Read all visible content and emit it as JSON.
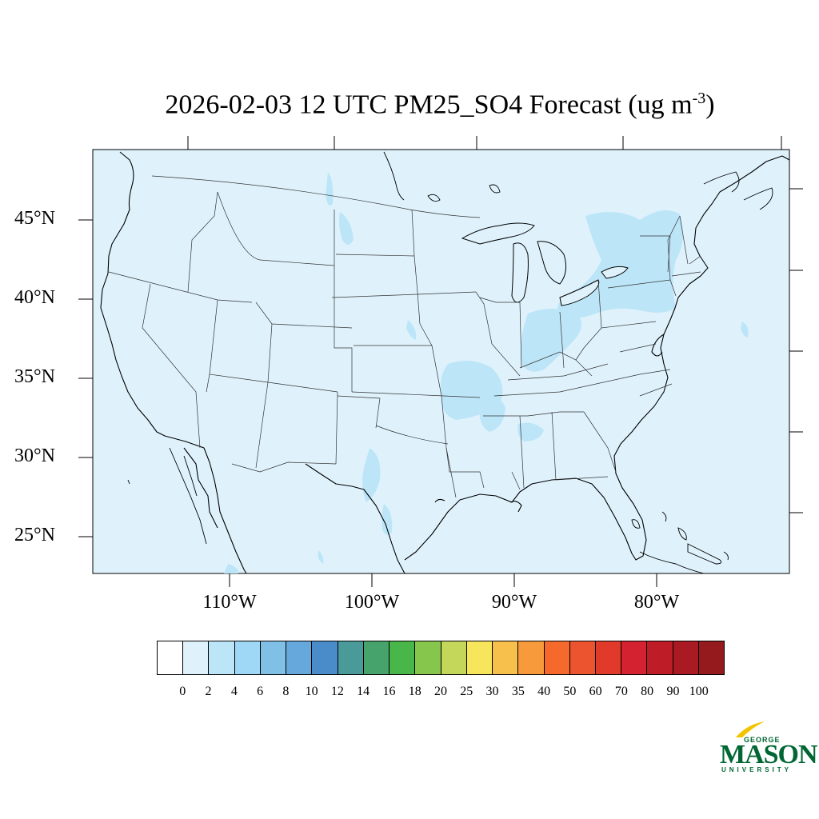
{
  "title": {
    "main": "2026-02-03 12 UTC PM25_SO4 Forecast (ug m",
    "sup": "-3",
    "close": ")"
  },
  "axes": {
    "lat_labels": [
      "45°N",
      "40°N",
      "35°N",
      "30°N",
      "25°N"
    ],
    "lon_labels": [
      "110°W",
      "100°W",
      "90°W",
      "80°W"
    ]
  },
  "colorbar": {
    "labels": [
      "0",
      "2",
      "4",
      "6",
      "8",
      "10",
      "12",
      "14",
      "16",
      "18",
      "20",
      "25",
      "30",
      "35",
      "40",
      "50",
      "60",
      "70",
      "80",
      "90",
      "100"
    ],
    "colors": [
      "#ffffff",
      "#dff2fc",
      "#bde5f8",
      "#9ed8f6",
      "#80c0e6",
      "#66a8dc",
      "#4a8cc9",
      "#4a9a9a",
      "#46a36c",
      "#48b648",
      "#86c64c",
      "#c4d75a",
      "#f7e65c",
      "#f7c04c",
      "#f79a3c",
      "#f56a2c",
      "#ec5430",
      "#e23a2a",
      "#d42230",
      "#be1c26",
      "#aa1a22",
      "#941a1e"
    ]
  },
  "map": {
    "background": "#dff2fc",
    "light_band": "#bde5f8"
  },
  "logo": {
    "top": "GEORGE",
    "name": "MASON",
    "bottom": "UNIVERSITY"
  }
}
